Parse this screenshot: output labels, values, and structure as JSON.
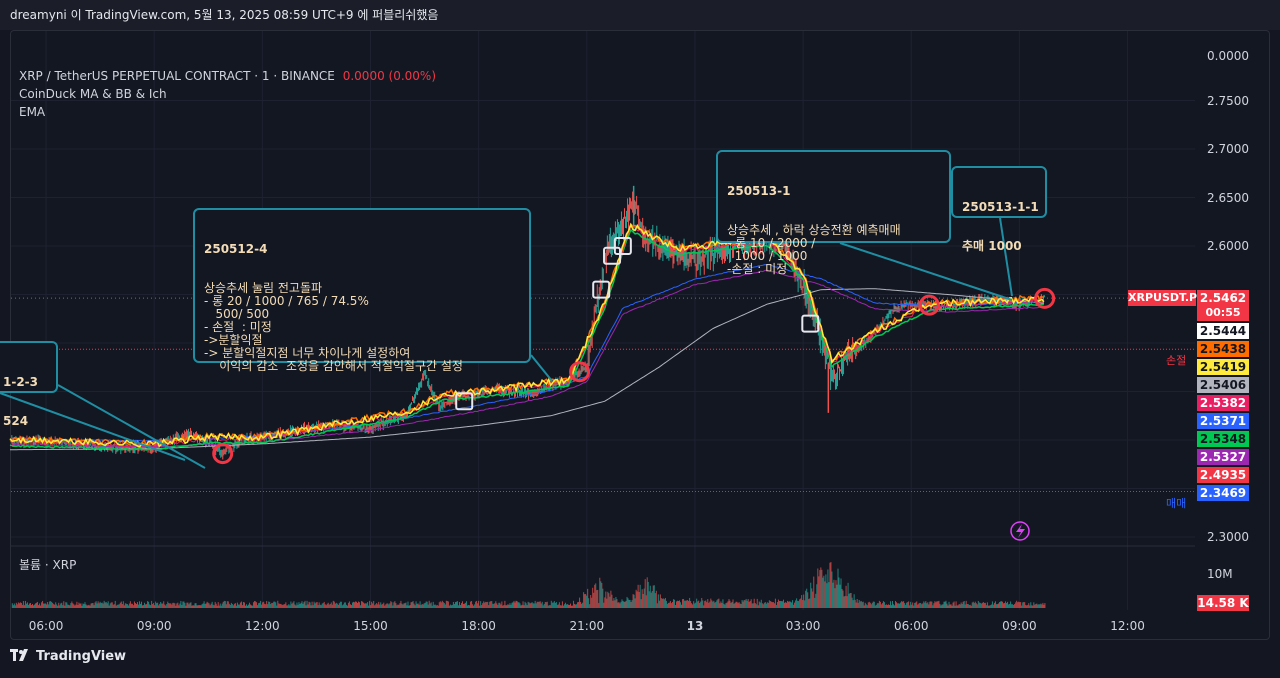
{
  "header": {
    "published_text": "dreamyni 이 TradingView.com, 5월 13, 2025 08:59 UTC+9 에 퍼블리쉬했음"
  },
  "legend": {
    "symbol_line": "XRP / TetherUS PERPETUAL CONTRACT · 1 · BINANCE",
    "change": "0.0000 (0.00%)",
    "indicator_1": "CoinDuck MA & BB & Ich",
    "indicator_2": "EMA",
    "volume_label": "볼륨 · XRP"
  },
  "symbol_tag": "XRPUSDT.P",
  "countdown": "00:55",
  "price_tags": [
    {
      "label": "2.5462",
      "bg": "#f23645",
      "fg": "#ffffff"
    },
    {
      "label": "2.5444",
      "bg": "#ffffff",
      "fg": "#131722"
    },
    {
      "label": "2.5438",
      "bg": "#ff6d00",
      "fg": "#131722"
    },
    {
      "label": "2.5419",
      "bg": "#ffeb3b",
      "fg": "#131722"
    },
    {
      "label": "2.5406",
      "bg": "#b2b5be",
      "fg": "#131722"
    },
    {
      "label": "2.5382",
      "bg": "#e91e63",
      "fg": "#ffffff"
    },
    {
      "label": "2.5371",
      "bg": "#2962ff",
      "fg": "#ffffff"
    },
    {
      "label": "2.5348",
      "bg": "#00c853",
      "fg": "#131722"
    },
    {
      "label": "2.5327",
      "bg": "#9c27b0",
      "fg": "#ffffff"
    },
    {
      "label": "2.4935",
      "bg": "#f23645",
      "fg": "#ffffff"
    },
    {
      "label": "2.3469",
      "bg": "#2962ff",
      "fg": "#ffffff"
    }
  ],
  "level_labels": {
    "stop": "손절",
    "entry": "매매"
  },
  "volume_tag": "14.58 K",
  "volume_axis": [
    "10M"
  ],
  "brand": "TradingView",
  "notes": [
    {
      "title": "250512-4",
      "body": "상승추세 눌림 전고돌파\n- 롱 20 / 1000 / 765 / 74.5%\n   500/ 500\n- 손절  : 미정\n->분할익절\n-> 분할익절지점 너무 차이나게 설정하여\n    이익의 감소  조정을 감안해서 적절익절구간 설정"
    },
    {
      "title": "250513-1",
      "body": "상승추세 , 하락 상승전환 예측매매\n- 롱 10 / 2000 /\n  1000 / 1000\n-손절 : 미정"
    },
    {
      "title": "250513-1-1",
      "body": "추매 1000"
    },
    {
      "title": "1-2-3",
      "body": "524"
    }
  ],
  "chart_data": {
    "type": "line",
    "title": "XRP / TetherUS PERPETUAL CONTRACT · 1 · BINANCE",
    "xlabel": "",
    "ylabel": "",
    "y_ticks": [
      "0.0000",
      "2.7500",
      "2.7000",
      "2.6500",
      "2.6000",
      "2.3000"
    ],
    "x_ticks": [
      "06:00",
      "09:00",
      "12:00",
      "15:00",
      "18:00",
      "21:00",
      "13",
      "03:00",
      "06:00",
      "09:00",
      "12:00"
    ],
    "ylim": [
      2.3,
      2.78
    ],
    "x_range_hours": [
      5.0,
      35.4
    ],
    "grid": true,
    "price_points": [
      [
        5.0,
        2.399
      ],
      [
        6.0,
        2.398
      ],
      [
        7.0,
        2.396
      ],
      [
        8.0,
        2.392
      ],
      [
        9.0,
        2.393
      ],
      [
        9.5,
        2.4
      ],
      [
        10.0,
        2.406
      ],
      [
        10.5,
        2.398
      ],
      [
        10.9,
        2.386
      ],
      [
        11.4,
        2.4
      ],
      [
        12.0,
        2.403
      ],
      [
        13.0,
        2.41
      ],
      [
        14.0,
        2.416
      ],
      [
        15.0,
        2.412
      ],
      [
        16.0,
        2.426
      ],
      [
        16.5,
        2.468
      ],
      [
        16.9,
        2.435
      ],
      [
        17.5,
        2.445
      ],
      [
        18.5,
        2.452
      ],
      [
        19.5,
        2.448
      ],
      [
        20.5,
        2.462
      ],
      [
        21.0,
        2.476
      ],
      [
        21.3,
        2.545
      ],
      [
        21.6,
        2.6
      ],
      [
        22.0,
        2.62
      ],
      [
        22.3,
        2.648
      ],
      [
        22.6,
        2.61
      ],
      [
        23.0,
        2.6
      ],
      [
        23.5,
        2.595
      ],
      [
        24.0,
        2.585
      ],
      [
        25.0,
        2.6
      ],
      [
        26.0,
        2.61
      ],
      [
        26.5,
        2.6
      ],
      [
        27.0,
        2.56
      ],
      [
        27.5,
        2.505
      ],
      [
        27.8,
        2.465
      ],
      [
        28.2,
        2.485
      ],
      [
        29.0,
        2.51
      ],
      [
        29.5,
        2.535
      ],
      [
        30.0,
        2.54
      ],
      [
        31.0,
        2.538
      ],
      [
        32.0,
        2.545
      ],
      [
        33.0,
        2.54
      ],
      [
        33.7,
        2.546
      ]
    ],
    "ema_fast": [
      [
        5.0,
        2.398
      ],
      [
        9.0,
        2.394
      ],
      [
        10.5,
        2.401
      ],
      [
        12.0,
        2.401
      ],
      [
        14.0,
        2.414
      ],
      [
        16.0,
        2.427
      ],
      [
        17.0,
        2.445
      ],
      [
        18.5,
        2.45
      ],
      [
        20.5,
        2.46
      ],
      [
        21.5,
        2.54
      ],
      [
        22.2,
        2.62
      ],
      [
        23.5,
        2.595
      ],
      [
        26.0,
        2.605
      ],
      [
        27.0,
        2.57
      ],
      [
        27.8,
        2.48
      ],
      [
        29.0,
        2.51
      ],
      [
        30.5,
        2.538
      ],
      [
        33.7,
        2.544
      ]
    ],
    "ema_slow": [
      [
        5.0,
        2.395
      ],
      [
        9.0,
        2.393
      ],
      [
        12.0,
        2.398
      ],
      [
        15.0,
        2.41
      ],
      [
        18.0,
        2.43
      ],
      [
        20.0,
        2.445
      ],
      [
        21.0,
        2.46
      ],
      [
        22.0,
        2.53
      ],
      [
        24.0,
        2.56
      ],
      [
        26.0,
        2.575
      ],
      [
        27.5,
        2.56
      ],
      [
        29.0,
        2.535
      ],
      [
        31.0,
        2.532
      ],
      [
        33.7,
        2.537
      ]
    ],
    "ma_long": [
      [
        5.0,
        2.39
      ],
      [
        9.0,
        2.391
      ],
      [
        12.0,
        2.396
      ],
      [
        15.0,
        2.403
      ],
      [
        18.0,
        2.415
      ],
      [
        20.0,
        2.425
      ],
      [
        21.5,
        2.44
      ],
      [
        23.0,
        2.475
      ],
      [
        24.5,
        2.515
      ],
      [
        26.0,
        2.54
      ],
      [
        27.5,
        2.555
      ],
      [
        29.0,
        2.556
      ],
      [
        31.0,
        2.55
      ],
      [
        33.7,
        2.541
      ]
    ],
    "stop_level": 2.4935,
    "entry_level": 2.3469,
    "current_price": 2.5462,
    "volume_hours": [
      21.3,
      22.6,
      27.4,
      27.7,
      28.0
    ],
    "entry_markers": [
      10.9,
      20.8,
      30.5,
      33.7
    ]
  }
}
